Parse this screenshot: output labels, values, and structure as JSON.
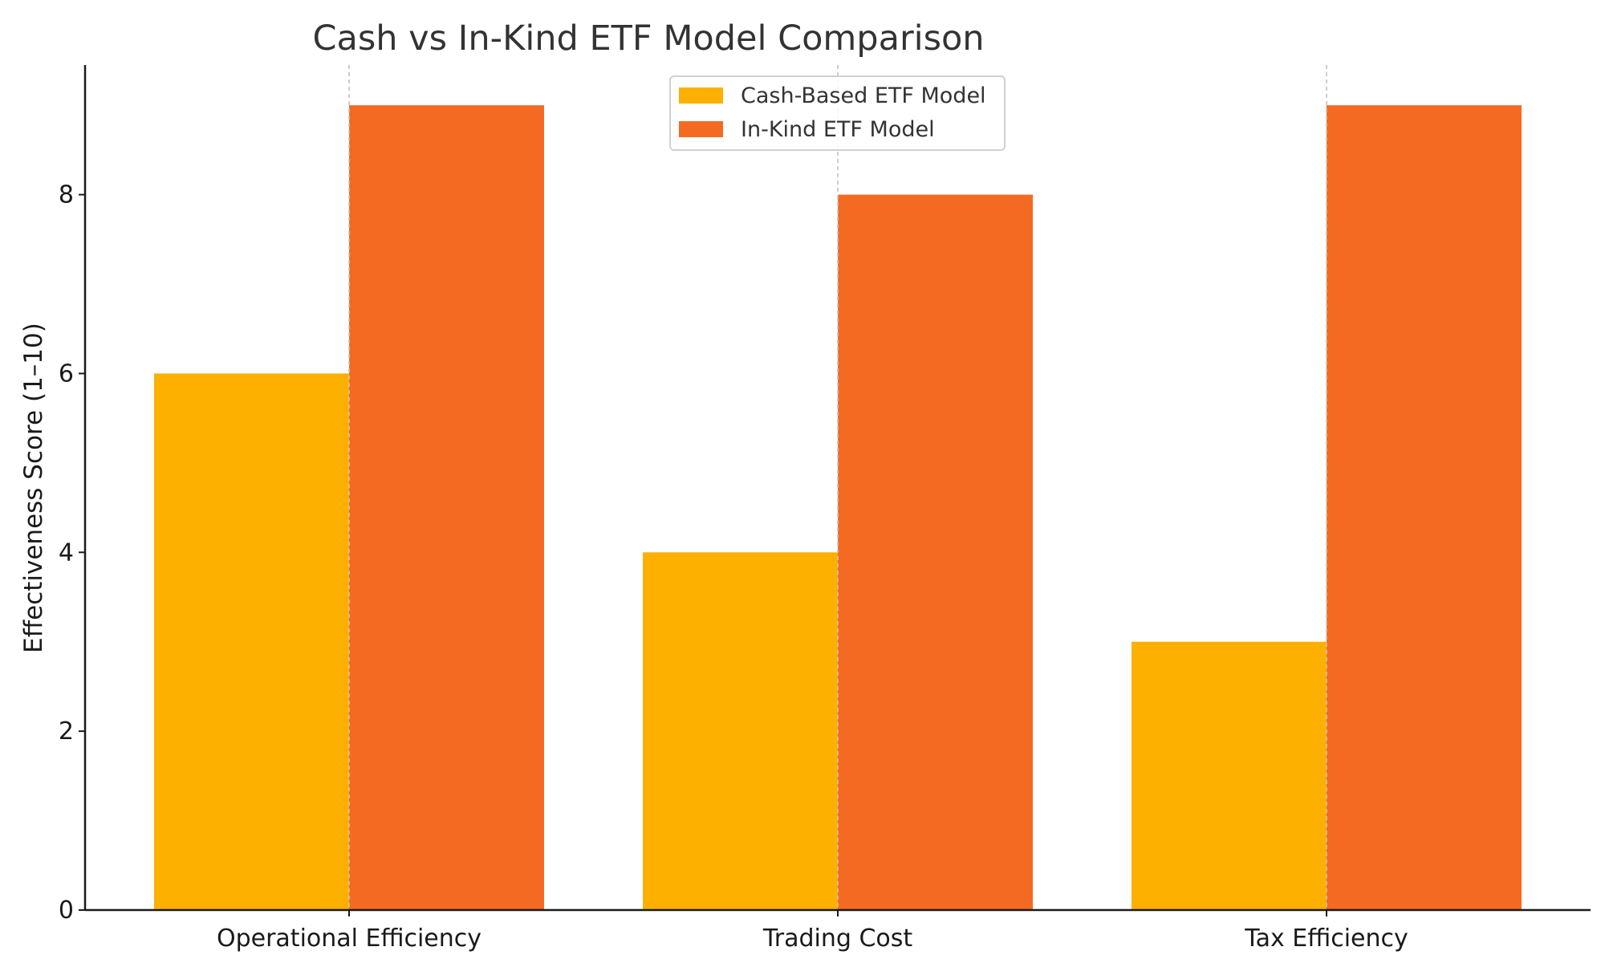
{
  "chart_data": {
    "type": "bar",
    "title": "Cash vs In-Kind ETF Model Comparison",
    "xlabel": "",
    "ylabel": "Effectiveness Score (1–10)",
    "categories": [
      "Operational Efficiency",
      "Trading Cost",
      "Tax Efficiency"
    ],
    "series": [
      {
        "name": "Cash-Based ETF Model",
        "values": [
          6,
          4,
          3
        ],
        "color": "#FDB000"
      },
      {
        "name": "In-Kind ETF Model",
        "values": [
          9,
          8,
          9
        ],
        "color": "#F46A22"
      }
    ],
    "ylim": [
      0,
      9.45
    ],
    "yticks": [
      0,
      2,
      4,
      6,
      8
    ],
    "grid": "x-axis dashed",
    "legend_position": "top-center"
  }
}
